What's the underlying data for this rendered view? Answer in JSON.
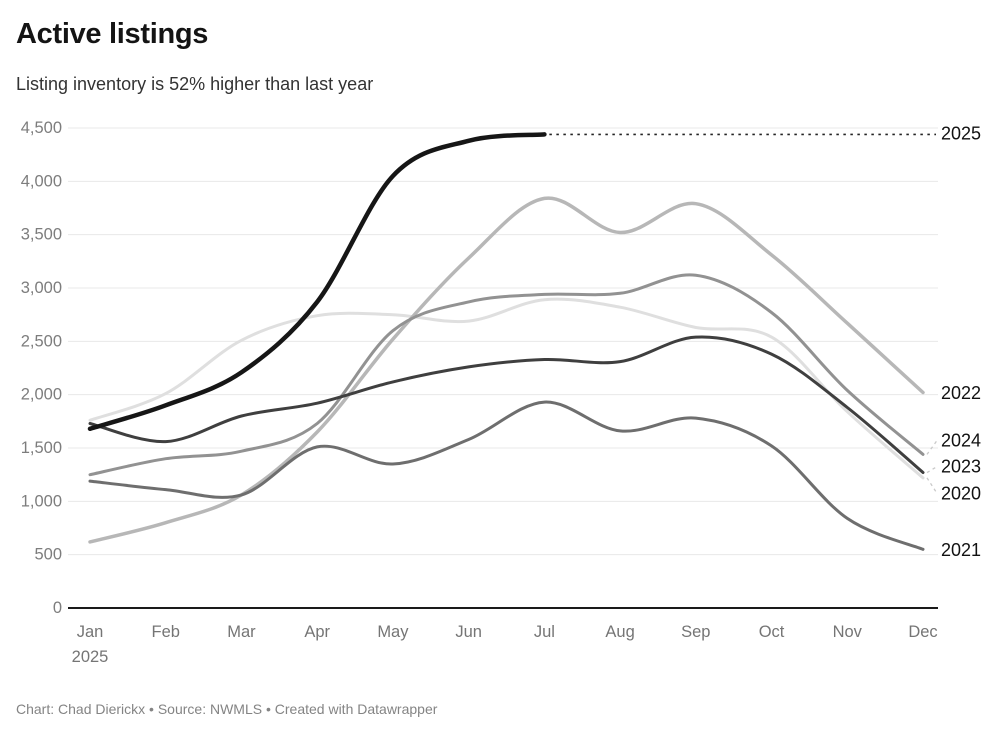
{
  "header": {
    "title": "Active listings",
    "subtitle": "Listing inventory is 52% higher than last year"
  },
  "footer": {
    "credit": "Chart: Chad Dierickx • Source: NWMLS • Created with Datawrapper"
  },
  "chart_data": {
    "type": "line",
    "title": "Active listings",
    "subtitle": "Listing inventory is 52% higher than last year",
    "x_categories": [
      "Jan",
      "Feb",
      "Mar",
      "Apr",
      "May",
      "Jun",
      "Jul",
      "Aug",
      "Sep",
      "Oct",
      "Nov",
      "Dec"
    ],
    "x_first_tick_second_line": "2025",
    "ylim": [
      0,
      4500
    ],
    "y_ticks": [
      {
        "value": 0,
        "label": "0"
      },
      {
        "value": 500,
        "label": "500"
      },
      {
        "value": 1000,
        "label": "1,000"
      },
      {
        "value": 1500,
        "label": "1,500"
      },
      {
        "value": 2000,
        "label": "2,000"
      },
      {
        "value": 2500,
        "label": "2,500"
      },
      {
        "value": 3000,
        "label": "3,000"
      },
      {
        "value": 3500,
        "label": "3,500"
      },
      {
        "value": 4000,
        "label": "4,000"
      },
      {
        "value": 4500,
        "label": "4,500"
      }
    ],
    "grid": "horizontal",
    "legend_position": "right-edge-direct-labels",
    "series": [
      {
        "name": "2020",
        "color": "#dfdfdf",
        "width": 3,
        "z": 1,
        "label_value": 1075,
        "values": [
          1760,
          2010,
          2510,
          2740,
          2750,
          2690,
          2890,
          2820,
          2630,
          2540,
          1840,
          1220
        ]
      },
      {
        "name": "2021",
        "color": "#6e6e6e",
        "width": 3,
        "z": 4,
        "label_value": 545,
        "values": [
          1190,
          1110,
          1060,
          1510,
          1350,
          1580,
          1930,
          1660,
          1780,
          1520,
          840,
          550
        ]
      },
      {
        "name": "2022",
        "color": "#b7b7b7",
        "width": 3.5,
        "z": 2,
        "label_value": 2015,
        "values": [
          620,
          800,
          1060,
          1650,
          2520,
          3280,
          3840,
          3520,
          3790,
          3310,
          2670,
          2020
        ]
      },
      {
        "name": "2023",
        "color": "#3f3f3f",
        "width": 3,
        "z": 5,
        "label_value": 1325,
        "values": [
          1730,
          1560,
          1800,
          1920,
          2120,
          2260,
          2330,
          2310,
          2540,
          2380,
          1880,
          1270
        ]
      },
      {
        "name": "2024",
        "color": "#929292",
        "width": 3,
        "z": 3,
        "label_value": 1570,
        "values": [
          1250,
          1400,
          1470,
          1730,
          2600,
          2870,
          2940,
          2950,
          3120,
          2770,
          2040,
          1440
        ]
      },
      {
        "name": "2025",
        "color": "#161616",
        "width": 4.5,
        "z": 6,
        "label_value": 4450,
        "projection_dotted": true,
        "values": [
          1680,
          1900,
          2210,
          2870,
          4050,
          4380,
          4440,
          null,
          null,
          null,
          null,
          null
        ]
      }
    ]
  }
}
